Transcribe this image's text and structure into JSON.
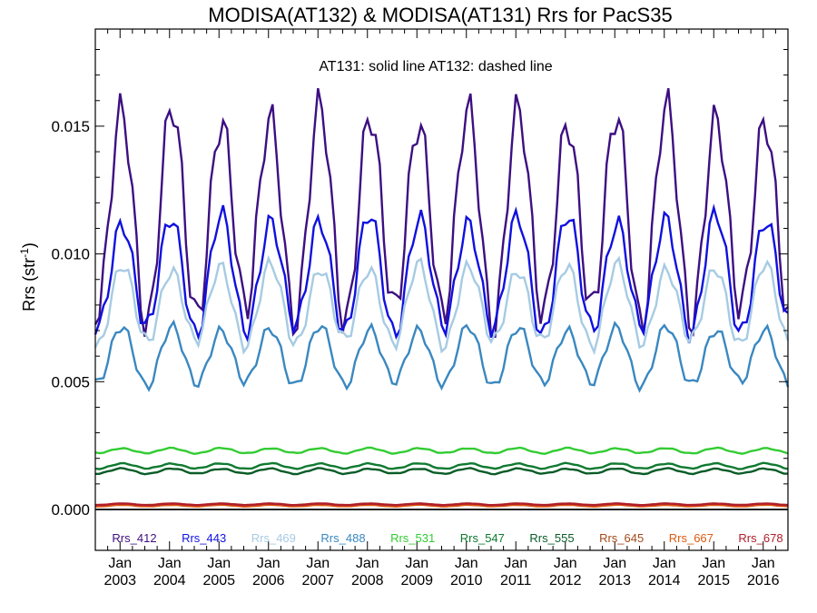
{
  "chart_data": {
    "type": "line",
    "title": "MODISA(AT132) & MODISA(AT131)  Rrs for PacS35",
    "annotation": "AT131: solid line   AT132: dashed line",
    "ylabel_main": "Rrs (str",
    "ylabel_sup": "-1",
    "ylabel_tail": ")",
    "ylim": [
      -0.0016,
      0.0188
    ],
    "xlim": [
      "2002-07",
      "2016-07"
    ],
    "yticks": [
      0.0,
      0.005,
      0.01,
      0.015
    ],
    "ytick_labels": [
      "0.000",
      "0.005",
      "0.010",
      "0.015"
    ],
    "xticks": [
      {
        "month": "Jan",
        "year": "2003",
        "date": "2003-01"
      },
      {
        "month": "Jan",
        "year": "2004",
        "date": "2004-01"
      },
      {
        "month": "Jan",
        "year": "2005",
        "date": "2005-01"
      },
      {
        "month": "Jan",
        "year": "2006",
        "date": "2006-01"
      },
      {
        "month": "Jan",
        "year": "2007",
        "date": "2007-01"
      },
      {
        "month": "Jan",
        "year": "2008",
        "date": "2008-01"
      },
      {
        "month": "Jan",
        "year": "2009",
        "date": "2009-01"
      },
      {
        "month": "Jan",
        "year": "2010",
        "date": "2010-01"
      },
      {
        "month": "Jan",
        "year": "2011",
        "date": "2011-01"
      },
      {
        "month": "Jan",
        "year": "2012",
        "date": "2012-01"
      },
      {
        "month": "Jan",
        "year": "2013",
        "date": "2013-01"
      },
      {
        "month": "Jan",
        "year": "2014",
        "date": "2014-01"
      },
      {
        "month": "Jan",
        "year": "2015",
        "date": "2015-01"
      },
      {
        "month": "Jan",
        "year": "2016",
        "date": "2016-01"
      }
    ],
    "legend_position": "bottom",
    "series": [
      {
        "name": "Rrs_412",
        "color": "#3d0f82",
        "base": 0.0115,
        "amp": 0.004
      },
      {
        "name": "Rrs_443",
        "color": "#1010e0",
        "base": 0.0092,
        "amp": 0.0022
      },
      {
        "name": "Rrs_469",
        "color": "#a6cbe3",
        "base": 0.008,
        "amp": 0.0015
      },
      {
        "name": "Rrs_488",
        "color": "#3a88c0",
        "base": 0.006,
        "amp": 0.0011
      },
      {
        "name": "Rrs_531",
        "color": "#33cc33",
        "base": 0.0023,
        "amp": 0.0001
      },
      {
        "name": "Rrs_547",
        "color": "#0f7a30",
        "base": 0.0017,
        "amp": 0.0001
      },
      {
        "name": "Rrs_555",
        "color": "#0a5c28",
        "base": 0.0015,
        "amp": 0.0001
      },
      {
        "name": "Rrs_645",
        "color": "#a34a1a",
        "base": 0.0002,
        "amp": 3e-05
      },
      {
        "name": "Rrs_667",
        "color": "#dd5a10",
        "base": 0.00015,
        "amp": 3e-05
      },
      {
        "name": "Rrs_678",
        "color": "#b01d2a",
        "base": 0.0002,
        "amp": 3e-05
      }
    ]
  }
}
